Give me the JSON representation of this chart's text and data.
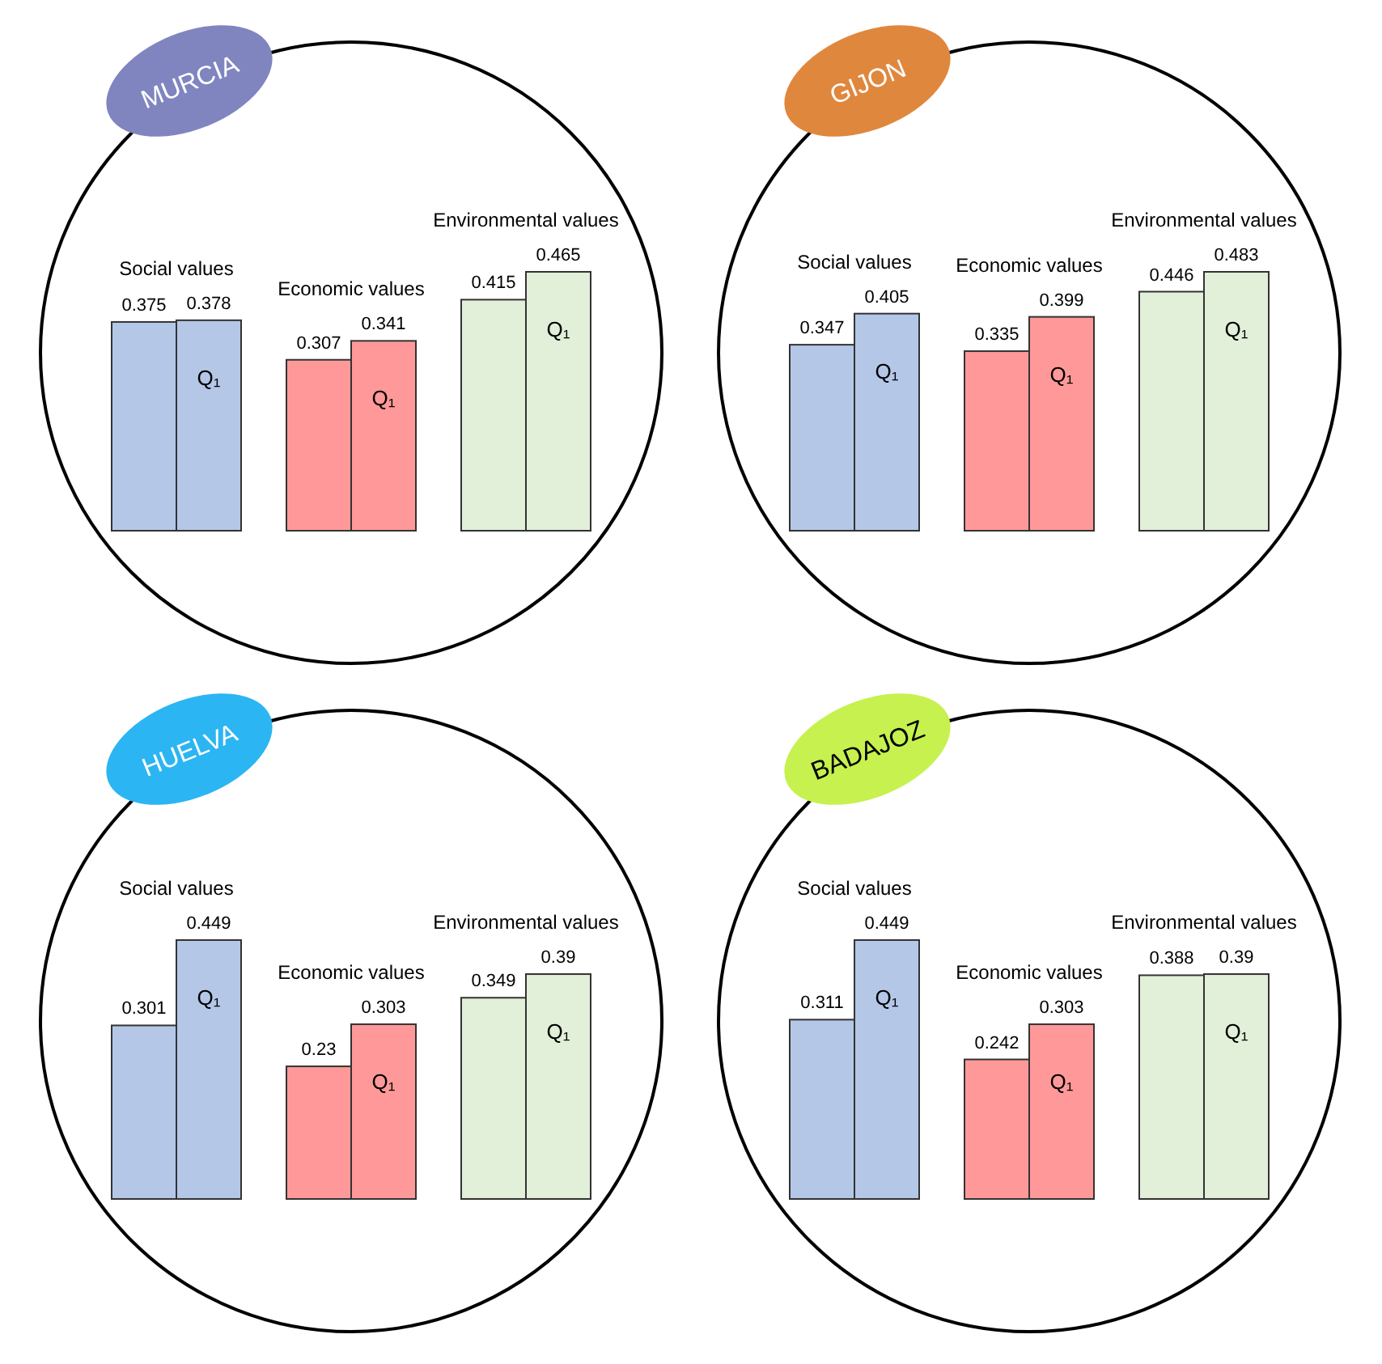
{
  "chart_data": [
    {
      "type": "bar",
      "title": "MURCIA",
      "categories": [
        "Social values",
        "Economic values",
        "Environmental values"
      ],
      "data_labels": true,
      "series": [
        {
          "colors": [
            "#b4c7e7",
            "#ff9999",
            "#e2efd9"
          ],
          "values": [
            0.375,
            0.307,
            0.415
          ]
        },
        {
          "name": "Q₁",
          "colors": [
            "#b4c7e7",
            "#ff9999",
            "#e2efd9"
          ],
          "values": [
            0.378,
            0.341,
            0.465
          ]
        }
      ]
    },
    {
      "type": "bar",
      "title": "GIJON",
      "categories": [
        "Social values",
        "Economic values",
        "Environmental values"
      ],
      "data_labels": true,
      "series": [
        {
          "colors": [
            "#b4c7e7",
            "#ff9999",
            "#e2efd9"
          ],
          "values": [
            0.347,
            0.335,
            0.446
          ]
        },
        {
          "name": "Q₁",
          "colors": [
            "#b4c7e7",
            "#ff9999",
            "#e2efd9"
          ],
          "values": [
            0.405,
            0.399,
            0.483
          ]
        }
      ]
    },
    {
      "type": "bar",
      "title": "HUELVA",
      "categories": [
        "Social values",
        "Economic values",
        "Environmental values"
      ],
      "data_labels": true,
      "series": [
        {
          "colors": [
            "#b4c7e7",
            "#ff9999",
            "#e2efd9"
          ],
          "values": [
            0.301,
            0.23,
            0.349
          ]
        },
        {
          "name": "Q₁",
          "colors": [
            "#b4c7e7",
            "#ff9999",
            "#e2efd9"
          ],
          "values": [
            0.449,
            0.303,
            0.39
          ]
        }
      ]
    },
    {
      "type": "bar",
      "title": "BADAJOZ",
      "categories": [
        "Social values",
        "Economic values",
        "Environmental values"
      ],
      "data_labels": true,
      "series": [
        {
          "colors": [
            "#b4c7e7",
            "#ff9999",
            "#e2efd9"
          ],
          "values": [
            0.311,
            0.242,
            0.388
          ]
        },
        {
          "name": "Q₁",
          "colors": [
            "#b4c7e7",
            "#ff9999",
            "#e2efd9"
          ],
          "values": [
            0.449,
            0.303,
            0.39
          ]
        }
      ]
    }
  ]
}
